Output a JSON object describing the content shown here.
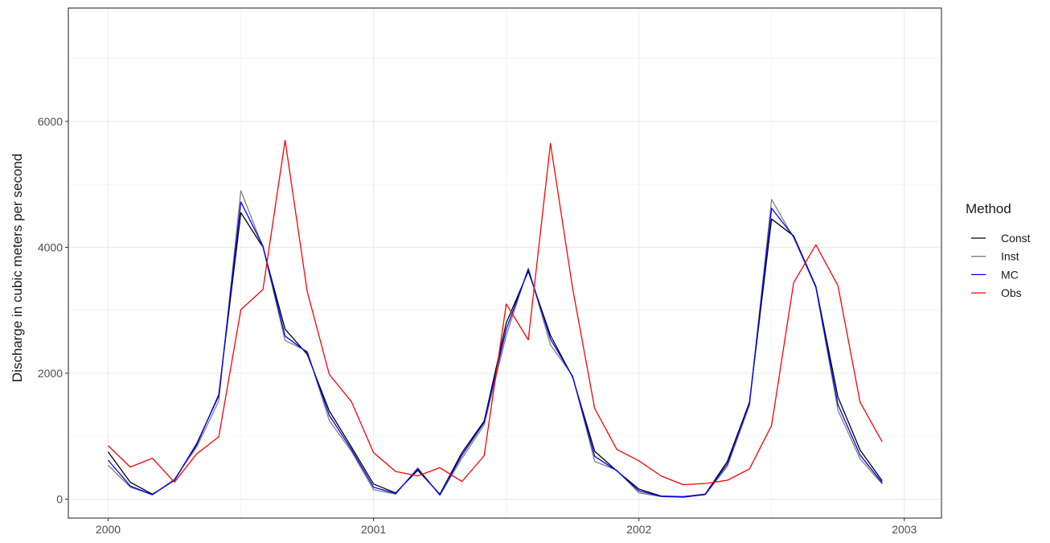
{
  "chart_data": {
    "type": "line",
    "xlabel": "",
    "ylabel": "Discharge in cubic meters per second",
    "xlim": [
      1999.85,
      2003.14
    ],
    "ylim": [
      -300,
      7800
    ],
    "x_ticks": [
      2000,
      2001,
      2002,
      2003
    ],
    "x_tick_labels": [
      "2000",
      "2001",
      "2002",
      "2003"
    ],
    "y_ticks": [
      0,
      2000,
      4000,
      6000
    ],
    "y_tick_labels": [
      "0",
      "2000",
      "4000",
      "6000"
    ],
    "grid": true,
    "legend": {
      "title": "Method",
      "position": "right"
    },
    "colors": {
      "Const": "#000000",
      "Inst": "#808080",
      "MC": "#0000ff",
      "Obs": "#ff0000"
    },
    "series": [
      {
        "name": "Const",
        "color": "#000000",
        "x": [
          2000.0,
          2000.0833,
          2000.1667,
          2000.25,
          2000.3333,
          2000.4167,
          2000.5,
          2000.5833,
          2000.6667,
          2000.75,
          2000.8333,
          2000.9167,
          2001.0,
          2001.0833,
          2001.1667,
          2001.25,
          2001.3333,
          2001.4167,
          2001.5,
          2001.5833,
          2001.6667,
          2001.75,
          2001.8333,
          2001.9167,
          2002.0,
          2002.0833,
          2002.1667,
          2002.25,
          2002.3333,
          2002.4167,
          2002.5,
          2002.5833,
          2002.6667,
          2002.75,
          2002.8333,
          2002.9167
        ],
        "y": [
          750,
          270,
          80,
          300,
          860,
          1660,
          4550,
          4000,
          2700,
          2300,
          1400,
          830,
          240,
          100,
          460,
          80,
          740,
          1240,
          2800,
          3620,
          2600,
          1940,
          760,
          450,
          160,
          50,
          40,
          80,
          600,
          1540,
          4450,
          4180,
          3380,
          1620,
          780,
          290
        ]
      },
      {
        "name": "Inst",
        "color": "#808080",
        "x": [
          2000.0,
          2000.0833,
          2000.1667,
          2000.25,
          2000.3333,
          2000.4167,
          2000.5,
          2000.5833,
          2000.6667,
          2000.75,
          2000.8333,
          2000.9167,
          2001.0,
          2001.0833,
          2001.1667,
          2001.25,
          2001.3333,
          2001.4167,
          2001.5,
          2001.5833,
          2001.6667,
          2001.75,
          2001.8333,
          2001.9167,
          2002.0,
          2002.0833,
          2002.1667,
          2002.25,
          2002.3333,
          2002.4167,
          2002.5,
          2002.5833,
          2002.6667,
          2002.75,
          2002.8333,
          2002.9167
        ],
        "y": [
          540,
          190,
          70,
          320,
          820,
          1560,
          4900,
          4000,
          2520,
          2350,
          1250,
          760,
          150,
          80,
          500,
          60,
          650,
          1180,
          2600,
          3670,
          2450,
          1960,
          600,
          460,
          100,
          40,
          30,
          70,
          520,
          1490,
          4760,
          4150,
          3360,
          1410,
          640,
          240
        ]
      },
      {
        "name": "MC",
        "color": "#0000ff",
        "x": [
          2000.0,
          2000.0833,
          2000.1667,
          2000.25,
          2000.3333,
          2000.4167,
          2000.5,
          2000.5833,
          2000.6667,
          2000.75,
          2000.8333,
          2000.9167,
          2001.0,
          2001.0833,
          2001.1667,
          2001.25,
          2001.3333,
          2001.4167,
          2001.5,
          2001.5833,
          2001.6667,
          2001.75,
          2001.8333,
          2001.9167,
          2002.0,
          2002.0833,
          2002.1667,
          2002.25,
          2002.3333,
          2002.4167,
          2002.5,
          2002.5833,
          2002.6667,
          2002.75,
          2002.8333,
          2002.9167
        ],
        "y": [
          620,
          210,
          70,
          300,
          880,
          1640,
          4720,
          4020,
          2590,
          2330,
          1330,
          790,
          190,
          90,
          480,
          70,
          700,
          1220,
          2700,
          3650,
          2540,
          1950,
          680,
          450,
          130,
          45,
          35,
          75,
          560,
          1520,
          4620,
          4170,
          3370,
          1500,
          700,
          260
        ]
      },
      {
        "name": "Obs",
        "color": "#ff0000",
        "x": [
          2000.0,
          2000.0833,
          2000.1667,
          2000.25,
          2000.3333,
          2000.4167,
          2000.5,
          2000.5833,
          2000.6667,
          2000.75,
          2000.8333,
          2000.9167,
          2001.0,
          2001.0833,
          2001.1667,
          2001.25,
          2001.3333,
          2001.4167,
          2001.5,
          2001.5833,
          2001.6667,
          2001.75,
          2001.8333,
          2001.9167,
          2002.0,
          2002.0833,
          2002.1667,
          2002.25,
          2002.3333,
          2002.4167,
          2002.5,
          2002.5833,
          2002.6667,
          2002.75,
          2002.8333,
          2002.9167
        ],
        "y": [
          850,
          510,
          650,
          270,
          720,
          990,
          3010,
          3330,
          5700,
          3300,
          1980,
          1550,
          740,
          440,
          370,
          500,
          280,
          690,
          3100,
          2530,
          5650,
          3350,
          1440,
          790,
          610,
          370,
          230,
          250,
          300,
          480,
          1170,
          3440,
          4040,
          3390,
          1540,
          910
        ]
      }
    ]
  }
}
